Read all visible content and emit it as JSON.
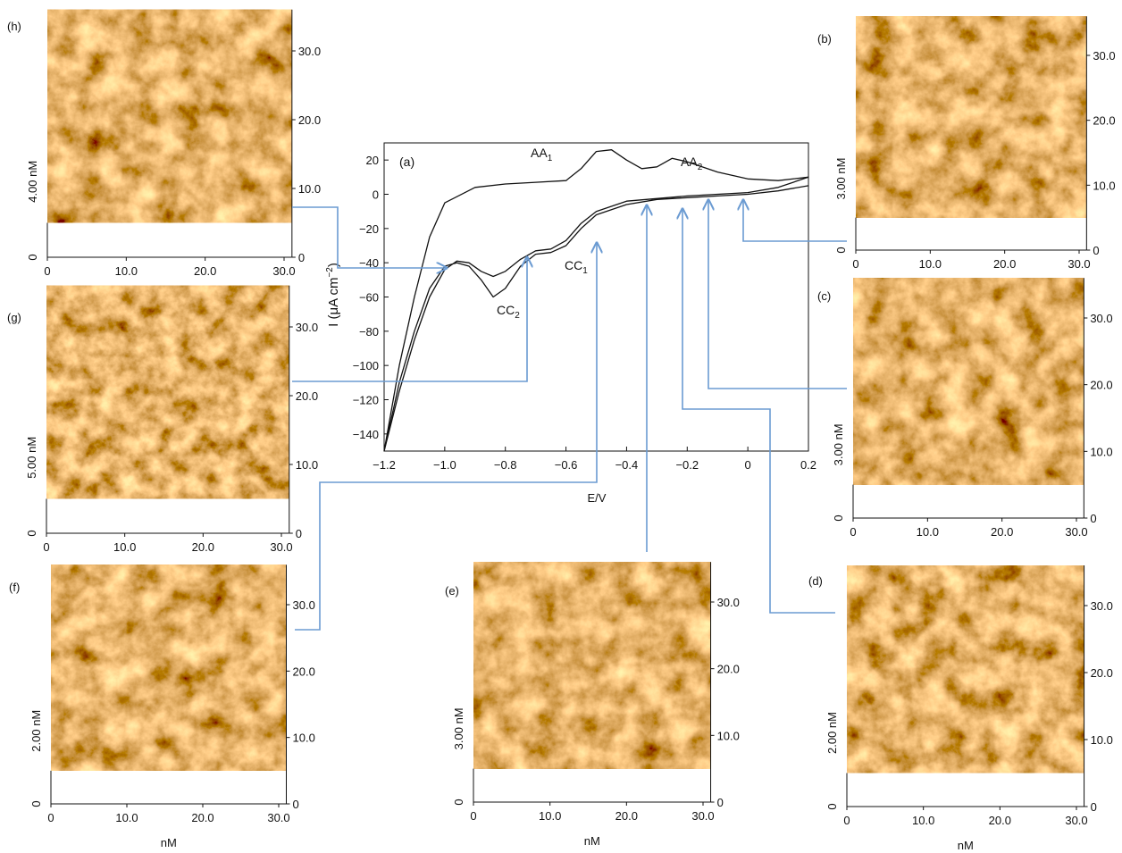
{
  "chart_data": {
    "type": "line",
    "xlabel": "E/V",
    "ylabel": [
      "I (μA cm",
      "−2",
      ")"
    ],
    "annotations": [
      [
        "(a)"
      ],
      [
        "AA",
        "1"
      ],
      [
        "AA",
        "2"
      ],
      [
        "CC",
        "1"
      ],
      [
        "CC",
        "2"
      ]
    ],
    "xlim": [
      -1.2,
      0.2
    ],
    "ylim": [
      -150,
      30
    ],
    "xticks": [
      {
        "value": -1.2,
        "label": "−1.2"
      },
      {
        "value": -1.0,
        "label": "−1.0"
      },
      {
        "value": -0.8,
        "label": "−0.8"
      },
      {
        "value": -0.6,
        "label": "−0.6"
      },
      {
        "value": -0.4,
        "label": "−0.4"
      },
      {
        "value": -0.2,
        "label": "−0.2"
      },
      0,
      0.2
    ],
    "yticks": [
      {
        "value": -140,
        "label": "−140"
      },
      {
        "value": -120,
        "label": "−120"
      },
      {
        "value": -100,
        "label": "−100"
      },
      {
        "value": -80,
        "label": "−80"
      },
      {
        "value": -60,
        "label": "−60"
      },
      {
        "value": -40,
        "label": "−40"
      },
      {
        "value": -20,
        "label": "−20"
      },
      0,
      20
    ],
    "series": [
      {
        "color": "#111111",
        "x": [
          0.2,
          0.1,
          0,
          -0.1,
          -0.2,
          -0.3,
          -0.4,
          -0.5,
          -0.55,
          -0.6,
          -0.65,
          -0.7,
          -0.75,
          -0.8,
          -0.84,
          -0.88,
          -0.92,
          -0.96,
          -1.0,
          -1.05,
          -1.1,
          -1.15,
          -1.2,
          -1.15,
          -1.1,
          -1.05,
          -1.0,
          -0.9,
          -0.8,
          -0.7,
          -0.6,
          -0.55,
          -0.5,
          -0.45,
          -0.4,
          -0.35,
          -0.3,
          -0.25,
          -0.2,
          -0.1,
          0,
          0.1,
          0.2
        ],
        "values": [
          5,
          2,
          0,
          -1,
          -2,
          -3,
          -6,
          -12,
          -20,
          -30,
          -34,
          -35,
          -42,
          -55,
          -60,
          -50,
          -42,
          -40,
          -42,
          -55,
          -80,
          -110,
          -150,
          -100,
          -60,
          -25,
          -5,
          4,
          6,
          7,
          8,
          15,
          25,
          26,
          20,
          15,
          16,
          21,
          19,
          13,
          9,
          8,
          10
        ]
      },
      {
        "color": "#111111",
        "x": [
          0.2,
          0.1,
          0,
          -0.2,
          -0.4,
          -0.5,
          -0.55,
          -0.6,
          -0.65,
          -0.7,
          -0.75,
          -0.8,
          -0.84,
          -0.88,
          -0.92,
          -0.96,
          -1.0,
          -1.05,
          -1.1,
          -1.15,
          -1.2
        ],
        "values": [
          10,
          4,
          1,
          -1,
          -4,
          -10,
          -17,
          -27,
          -32,
          -33,
          -38,
          -45,
          -48,
          -45,
          -40,
          -39,
          -44,
          -60,
          -85,
          -115,
          -150
        ]
      }
    ]
  },
  "panels": [
    {
      "label": "(h)",
      "zlabel": "4.00 nM",
      "zticks": [
        0
      ],
      "xlim": [
        0,
        31
      ],
      "ylim": [
        0,
        36
      ],
      "xticks": [
        0,
        {
          "value": 10,
          "label": "10.0"
        },
        {
          "value": 20,
          "label": "20.0"
        },
        {
          "value": 30,
          "label": "30.0"
        }
      ],
      "yticks": [
        0,
        {
          "value": 10,
          "label": "10.0"
        },
        {
          "value": 20,
          "label": "20.0"
        },
        {
          "value": 30,
          "label": "30.0"
        }
      ]
    },
    {
      "label": "(g)",
      "zlabel": "5.00 nM",
      "zticks": [
        0
      ],
      "xlim": [
        0,
        31
      ],
      "ylim": [
        0,
        36
      ],
      "xticks": [
        0,
        {
          "value": 10,
          "label": "10.0"
        },
        {
          "value": 20,
          "label": "20.0"
        },
        {
          "value": 30,
          "label": "30.0"
        }
      ],
      "yticks": [
        0,
        {
          "value": 10,
          "label": "10.0"
        },
        {
          "value": 20,
          "label": "20.0"
        },
        {
          "value": 30,
          "label": "30.0"
        }
      ]
    },
    {
      "label": "(f)",
      "zlabel": "2.00 nM",
      "zticks": [
        0
      ],
      "xlim": [
        0,
        31
      ],
      "ylim": [
        0,
        36
      ],
      "xlabel": "nM",
      "xticks": [
        0,
        {
          "value": 10,
          "label": "10.0"
        },
        {
          "value": 20,
          "label": "20.0"
        },
        {
          "value": 30,
          "label": "30.0"
        }
      ],
      "yticks": [
        0,
        {
          "value": 10,
          "label": "10.0"
        },
        {
          "value": 20,
          "label": "20.0"
        },
        {
          "value": 30,
          "label": "30.0"
        }
      ]
    },
    {
      "label": "(e)",
      "zlabel": "3.00 nM",
      "zticks": [
        0
      ],
      "xlim": [
        0,
        31
      ],
      "ylim": [
        0,
        36
      ],
      "xlabel": "nM",
      "xticks": [
        0,
        {
          "value": 10,
          "label": "10.0"
        },
        {
          "value": 20,
          "label": "20.0"
        },
        {
          "value": 30,
          "label": "30.0"
        }
      ],
      "yticks": [
        0,
        {
          "value": 10,
          "label": "10.0"
        },
        {
          "value": 20,
          "label": "20.0"
        },
        {
          "value": 30,
          "label": "30.0"
        }
      ]
    },
    {
      "label": "(d)",
      "zlabel": "2.00 nM",
      "zticks": [
        0
      ],
      "xlim": [
        0,
        31
      ],
      "ylim": [
        0,
        36
      ],
      "xlabel": "nM",
      "xticks": [
        0,
        {
          "value": 10,
          "label": "10.0"
        },
        {
          "value": 20,
          "label": "20.0"
        },
        {
          "value": 30,
          "label": "30.0"
        }
      ],
      "yticks": [
        0,
        {
          "value": 10,
          "label": "10.0"
        },
        {
          "value": 20,
          "label": "20.0"
        },
        {
          "value": 30,
          "label": "30.0"
        }
      ]
    },
    {
      "label": "(c)",
      "zlabel": "3.00 nM",
      "zticks": [
        0
      ],
      "xlim": [
        0,
        31
      ],
      "ylim": [
        0,
        36
      ],
      "xticks": [
        0,
        {
          "value": 10,
          "label": "10.0"
        },
        {
          "value": 20,
          "label": "20.0"
        },
        {
          "value": 30,
          "label": "30.0"
        }
      ],
      "yticks": [
        0,
        {
          "value": 10,
          "label": "10.0"
        },
        {
          "value": 20,
          "label": "20.0"
        },
        {
          "value": 30,
          "label": "30.0"
        }
      ]
    },
    {
      "label": "(b)",
      "zlabel": "3.00 nM",
      "zticks": [
        0
      ],
      "xlim": [
        0,
        31
      ],
      "ylim": [
        0,
        36
      ],
      "xticks": [
        0,
        {
          "value": 10,
          "label": "10.0"
        },
        {
          "value": 20,
          "label": "20.0"
        },
        {
          "value": 30,
          "label": "30.0"
        }
      ],
      "yticks": [
        0,
        {
          "value": 10,
          "label": "10.0"
        },
        {
          "value": 20,
          "label": "20.0"
        },
        {
          "value": 30,
          "label": "30.0"
        }
      ]
    }
  ]
}
